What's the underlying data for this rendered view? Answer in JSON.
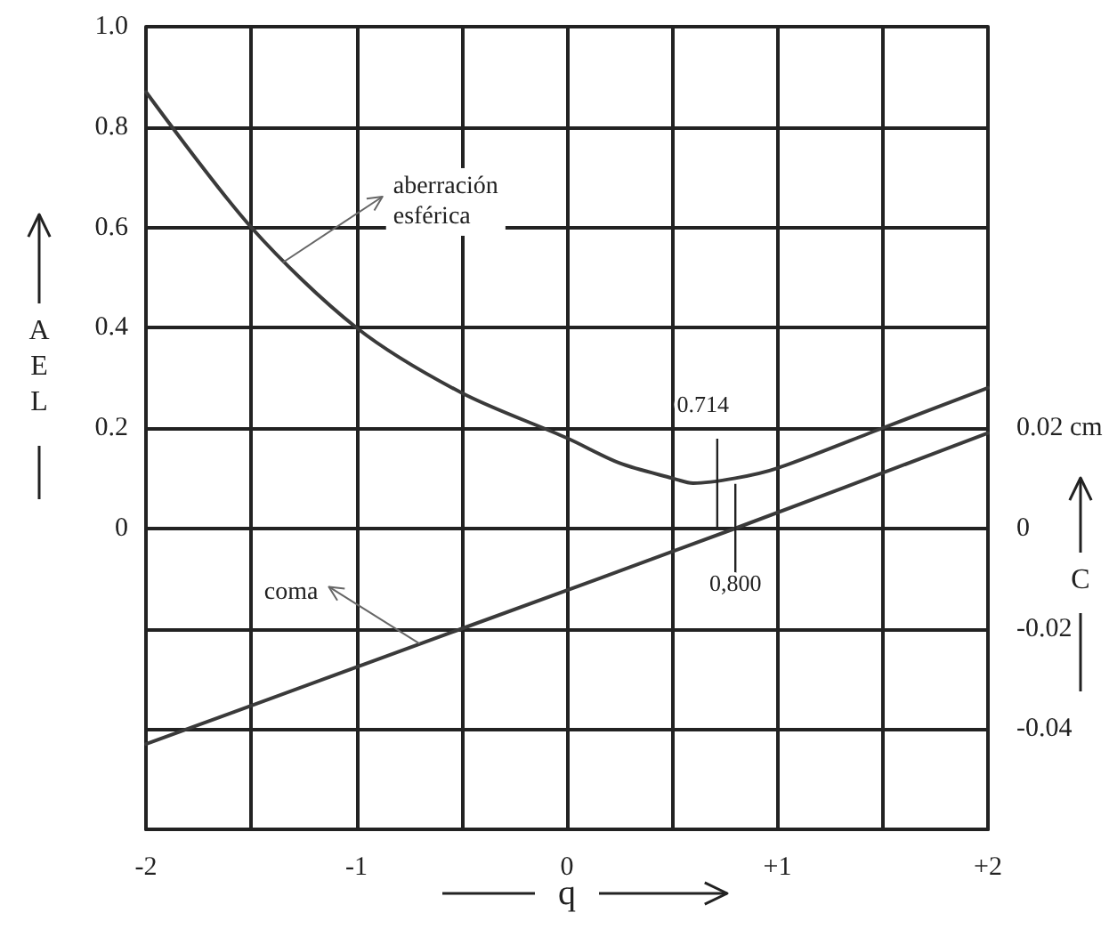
{
  "chart_data": {
    "type": "line",
    "xlabel": "q",
    "ylabel": "AEL",
    "y2label": "C",
    "xlim": [
      -2,
      2
    ],
    "xticks": [
      -2,
      {
        "value": -1.5,
        "label": null
      },
      -1,
      {
        "value": -0.5,
        "label": null
      },
      0,
      {
        "value": 0.5,
        "label": null
      },
      {
        "value": 1,
        "label": "+1"
      },
      {
        "value": 1.5,
        "label": null
      },
      {
        "value": 2,
        "label": "+2"
      }
    ],
    "ylim": [
      -0.6,
      1.0
    ],
    "yticks": [
      {
        "value": -0.6,
        "label": null
      },
      {
        "value": -0.4,
        "label": null
      },
      {
        "value": -0.2,
        "label": null
      },
      0,
      0.2,
      0.4,
      0.6,
      0.8,
      {
        "value": 1.0,
        "label": "1.0"
      }
    ],
    "y2lim": [
      -0.06,
      0.1
    ],
    "y2ticks": [
      -0.04,
      -0.02,
      0,
      {
        "value": 0.02,
        "label": "0.02 cm"
      }
    ],
    "grid": true,
    "marker": "none",
    "line_style": "solid",
    "series": [
      {
        "color": "#3a3a3a",
        "x": [
          -2,
          -1.5,
          -1,
          -0.5,
          0,
          0.25,
          0.5,
          0.6,
          0.8,
          1,
          1.5,
          2
        ],
        "values": [
          0.87,
          0.6,
          0.4,
          0.27,
          0.18,
          0.13,
          0.1,
          0.09,
          0.1,
          0.12,
          0.2,
          0.28
        ]
      },
      {
        "color": "#3a3a3a",
        "axis": "y2",
        "x": [
          -2,
          -0.5,
          0.8,
          2
        ],
        "values": [
          -0.043,
          -0.02,
          0,
          0.019
        ]
      }
    ],
    "annotations": [
      {
        "text": "aberración esférica",
        "x": -1.35,
        "y": 0.53
      },
      {
        "text": "coma",
        "x": -0.7,
        "y": -0.23
      },
      {
        "text": "0.714",
        "x": 0.714,
        "y": 0.09
      },
      {
        "text": "0,800",
        "x": 0.8,
        "y": 0
      }
    ]
  }
}
